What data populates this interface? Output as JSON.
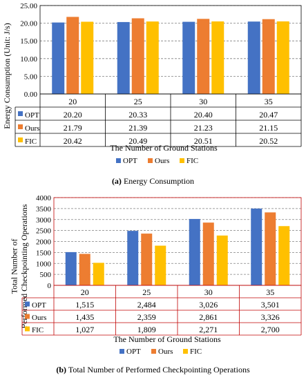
{
  "colors": {
    "opt": "#4472C4",
    "ours": "#ED7D31",
    "fic": "#FFC000",
    "grid": "#7f7f7f"
  },
  "chart_data": [
    {
      "type": "bar",
      "ylabel": "Energy Consumption (Unit: J/s)",
      "xlabel": "The Number of Ground Stations",
      "categories": [
        "20",
        "25",
        "30",
        "35"
      ],
      "y_ticks": [
        "0.00",
        "5.00",
        "10.00",
        "15.00",
        "20.00",
        "25.00"
      ],
      "ylim": [
        0,
        25
      ],
      "grid": true,
      "legend_placement": "bottom",
      "series": [
        {
          "name": "OPT",
          "values": [
            20.2,
            20.33,
            20.4,
            20.47
          ],
          "labels": [
            "20.20",
            "20.33",
            "20.40",
            "20.47"
          ]
        },
        {
          "name": "Ours",
          "values": [
            21.79,
            21.39,
            21.23,
            21.15
          ],
          "labels": [
            "21.79",
            "21.39",
            "21.23",
            "21.15"
          ]
        },
        {
          "name": "FIC",
          "values": [
            20.42,
            20.49,
            20.51,
            20.52
          ],
          "labels": [
            "20.42",
            "20.49",
            "20.51",
            "20.52"
          ]
        }
      ]
    },
    {
      "type": "bar",
      "ylabel": "Total Number of Performed Checkpointing Operations",
      "xlabel": "The Number of Ground Stations",
      "categories": [
        "20",
        "25",
        "30",
        "35"
      ],
      "y_ticks": [
        "0",
        "500",
        "1000",
        "1500",
        "2000",
        "2500",
        "3000",
        "3500",
        "4000"
      ],
      "ylim": [
        0,
        4000
      ],
      "grid": true,
      "legend_placement": "bottom",
      "series": [
        {
          "name": "OPT",
          "values": [
            1515,
            2484,
            3026,
            3501
          ],
          "labels": [
            "1,515",
            "2,484",
            "3,026",
            "3,501"
          ]
        },
        {
          "name": "Ours",
          "values": [
            1435,
            2359,
            2861,
            3326
          ],
          "labels": [
            "1,435",
            "2,359",
            "2,861",
            "3,326"
          ]
        },
        {
          "name": "FIC",
          "values": [
            1027,
            1809,
            2271,
            2700
          ],
          "labels": [
            "1,027",
            "1,809",
            "2,271",
            "2,700"
          ]
        }
      ]
    }
  ],
  "captions": {
    "a_letter": "(a)",
    "a_text": "Energy Consumption",
    "b_letter": "(b)",
    "b_text": "Total Number of Performed Checkpointing Operations"
  }
}
